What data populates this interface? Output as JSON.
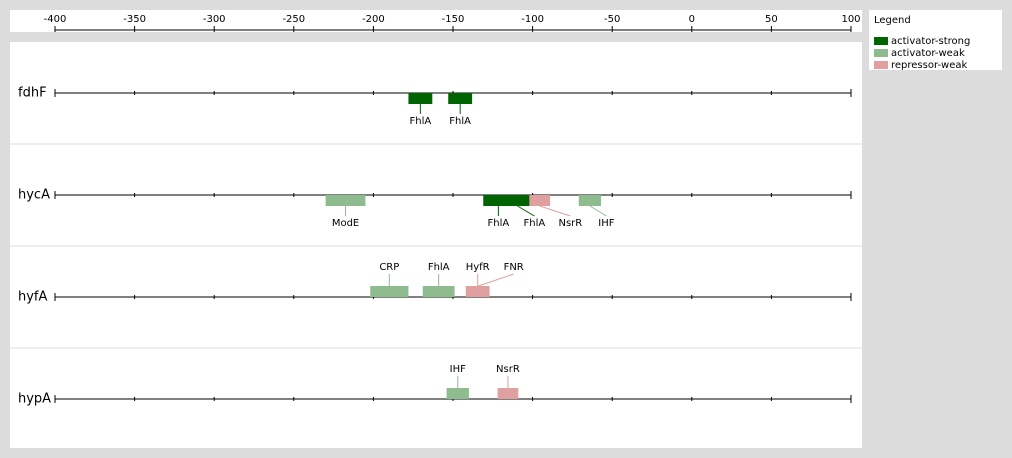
{
  "chart_data": {
    "type": "interval",
    "xlim": [
      -400,
      100
    ],
    "xticks": [
      -400,
      -350,
      -300,
      -250,
      -200,
      -150,
      -100,
      -50,
      0,
      50,
      100
    ],
    "legend_title": "Legend",
    "series": [
      {
        "name": "activator-strong",
        "color": "#006400"
      },
      {
        "name": "activator-weak",
        "color": "#8fbc8f"
      },
      {
        "name": "repressor-weak",
        "color": "#e0a0a0"
      }
    ],
    "rows": [
      {
        "name": "fdhF",
        "side": "below",
        "sites": [
          {
            "label": "FhlA",
            "kind": "activator-strong",
            "start": -178,
            "end": -163
          },
          {
            "label": "FhlA",
            "kind": "activator-strong",
            "start": -153,
            "end": -138
          }
        ]
      },
      {
        "name": "hycA",
        "side": "below",
        "sites": [
          {
            "label": "ModE",
            "kind": "activator-weak",
            "start": -230,
            "end": -205
          },
          {
            "label": "FhlA",
            "kind": "activator-strong",
            "start": -131,
            "end": -112
          },
          {
            "label": "FhlA",
            "kind": "activator-strong",
            "start": -117,
            "end": -102
          },
          {
            "label": "NsrR",
            "kind": "repressor-weak",
            "start": -102,
            "end": -89
          },
          {
            "label": "IHF",
            "kind": "activator-weak",
            "start": -71,
            "end": -57
          }
        ]
      },
      {
        "name": "hyfA",
        "side": "above",
        "sites": [
          {
            "label": "CRP",
            "kind": "activator-weak",
            "start": -202,
            "end": -178
          },
          {
            "label": "FhlA",
            "kind": "activator-weak",
            "start": -169,
            "end": -149
          },
          {
            "label": "HyfR",
            "kind": "repressor-weak",
            "start": -142,
            "end": -127
          },
          {
            "label": "FNR",
            "kind": "repressor-weak",
            "start": -140,
            "end": -128
          }
        ]
      },
      {
        "name": "hypA",
        "side": "above",
        "sites": [
          {
            "label": "IHF",
            "kind": "activator-weak",
            "start": -154,
            "end": -140
          },
          {
            "label": "NsrR",
            "kind": "repressor-weak",
            "start": -122,
            "end": -109
          }
        ]
      }
    ]
  }
}
